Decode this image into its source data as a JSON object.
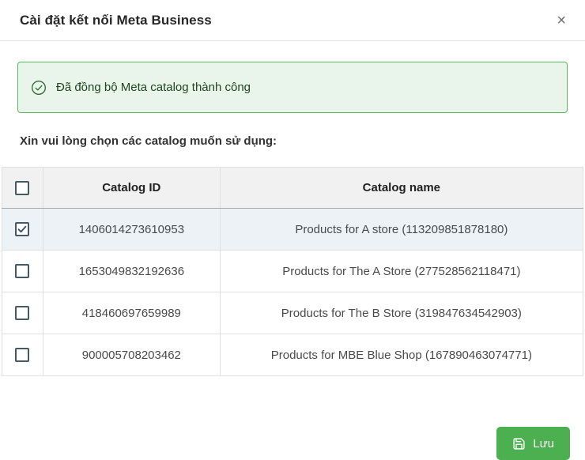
{
  "dialog": {
    "title": "Cài đặt kết nối Meta Business",
    "close_label": "×"
  },
  "alert": {
    "icon": "check-circle-icon",
    "message": "Đã đồng bộ Meta catalog thành công",
    "bg_color": "#e9f5ea",
    "border_color": "#5cb85c",
    "text_color": "#1e4620"
  },
  "instruction": "Xin vui lòng chọn các catalog muốn sử dụng:",
  "table": {
    "columns": [
      "Catalog ID",
      "Catalog name"
    ],
    "rows": [
      {
        "checked": true,
        "id": "1406014273610953",
        "name": "Products for A store (113209851878180)"
      },
      {
        "checked": false,
        "id": "1653049832192636",
        "name": "Products for The A Store (277528562118471)"
      },
      {
        "checked": false,
        "id": "418460697659989",
        "name": "Products for The B Store (319847634542903)"
      },
      {
        "checked": false,
        "id": "900005708203462",
        "name": "Products for MBE Blue Shop (167890463074771)"
      }
    ],
    "select_all_checked": false
  },
  "footer": {
    "save_label": "Lưu",
    "save_icon": "floppy-disk-icon",
    "save_color": "#4caf50"
  }
}
